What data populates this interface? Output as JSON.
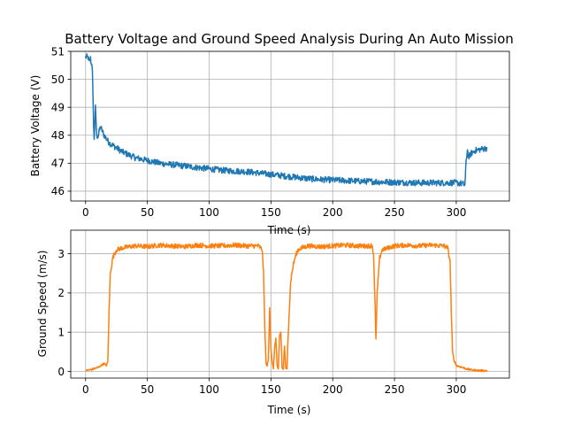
{
  "chart_data": [
    {
      "type": "line",
      "title": "Battery Voltage and Ground Speed Analysis During An Auto Mission",
      "xlabel": "Time (s)",
      "ylabel": "Battery Voltage (V)",
      "xlim": [
        -12,
        343
      ],
      "ylim": [
        45.65,
        51.0
      ],
      "xticks": [
        0,
        50,
        100,
        150,
        200,
        250,
        300
      ],
      "yticks": [
        46,
        47,
        48,
        49,
        50,
        51
      ],
      "grid": true,
      "series": [
        {
          "color": "#1f77b4",
          "x": [
            0,
            1,
            2,
            3,
            4,
            4.5,
            5,
            5.5,
            6,
            6.5,
            7,
            8,
            9,
            10,
            12,
            15,
            18,
            20,
            25,
            30,
            35,
            40,
            45,
            50,
            55,
            60,
            70,
            80,
            90,
            100,
            110,
            120,
            130,
            140,
            150,
            160,
            170,
            180,
            190,
            200,
            210,
            220,
            230,
            240,
            250,
            260,
            270,
            280,
            290,
            300,
            305,
            307,
            308,
            309,
            310,
            312,
            315,
            320,
            325
          ],
          "y": [
            50.8,
            50.8,
            50.78,
            50.6,
            50.75,
            50.55,
            50.6,
            50.2,
            49.5,
            48.3,
            47.9,
            49.0,
            48.0,
            47.95,
            48.3,
            48.0,
            47.8,
            47.7,
            47.55,
            47.4,
            47.3,
            47.2,
            47.15,
            47.1,
            47.05,
            47.0,
            46.95,
            46.9,
            46.85,
            46.8,
            46.75,
            46.72,
            46.7,
            46.65,
            46.6,
            46.55,
            46.5,
            46.45,
            46.42,
            46.4,
            46.38,
            46.36,
            46.35,
            46.33,
            46.32,
            46.31,
            46.3,
            46.3,
            46.3,
            46.3,
            46.27,
            46.22,
            47.05,
            47.5,
            47.2,
            47.35,
            47.45,
            47.5,
            47.55
          ],
          "noise": 0.22
        }
      ]
    },
    {
      "type": "line",
      "xlabel": "Time (s)",
      "ylabel": "Ground Speed (m/s)",
      "xlim": [
        -12,
        343
      ],
      "ylim": [
        -0.17,
        3.6
      ],
      "xticks": [
        0,
        50,
        100,
        150,
        200,
        250,
        300
      ],
      "yticks": [
        0,
        1,
        2,
        3
      ],
      "grid": true,
      "series": [
        {
          "color": "#ff7f0e",
          "x": [
            0,
            5,
            10,
            15,
            17,
            18,
            19,
            20,
            22,
            25,
            30,
            40,
            50,
            60,
            70,
            80,
            90,
            100,
            110,
            120,
            130,
            140,
            143,
            144,
            145,
            146,
            147,
            148,
            149,
            150,
            151,
            152,
            153,
            154,
            155,
            156,
            157,
            158,
            159,
            160,
            161,
            162,
            163,
            164,
            165,
            166,
            168,
            170,
            172,
            175,
            180,
            190,
            200,
            210,
            220,
            230,
            232,
            233,
            234,
            235,
            236,
            238,
            240,
            245,
            250,
            260,
            270,
            280,
            290,
            293,
            295,
            296,
            297,
            298,
            300,
            305,
            310,
            315,
            320,
            325
          ],
          "y": [
            0.02,
            0.05,
            0.1,
            0.2,
            0.15,
            0.25,
            1.5,
            2.5,
            2.9,
            3.1,
            3.15,
            3.2,
            3.18,
            3.22,
            3.2,
            3.18,
            3.22,
            3.2,
            3.2,
            3.22,
            3.2,
            3.2,
            3.1,
            2.5,
            1.2,
            0.2,
            0.15,
            0.3,
            1.65,
            0.6,
            0.25,
            0.05,
            0.6,
            0.85,
            0.15,
            0.05,
            0.9,
            1.0,
            0.1,
            0.05,
            0.65,
            0.08,
            0.05,
            1.0,
            1.65,
            2.3,
            2.7,
            2.95,
            3.1,
            3.15,
            3.2,
            3.18,
            3.2,
            3.22,
            3.2,
            3.2,
            3.22,
            3.0,
            2.0,
            0.82,
            2.0,
            2.9,
            3.1,
            3.15,
            3.2,
            3.22,
            3.2,
            3.22,
            3.2,
            3.15,
            2.8,
            1.5,
            0.5,
            0.3,
            0.15,
            0.1,
            0.05,
            0.03,
            0.02,
            0.02
          ],
          "noise": 0.12
        }
      ]
    }
  ]
}
